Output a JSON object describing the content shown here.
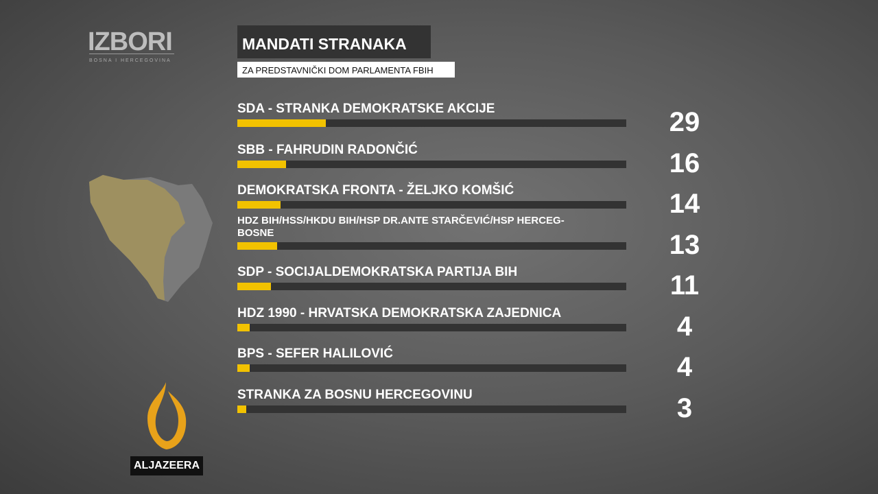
{
  "logo": {
    "title": "IZBORI",
    "subtitle": "BOSNA I HERCEGOVINA"
  },
  "broadcaster": "ALJAZEERA",
  "chart_data": {
    "type": "bar",
    "orientation": "horizontal",
    "title": "MANDATI STRANAKA",
    "subtitle": "ZA PREDSTAVNIČKI DOM PARLAMENTA FBIH",
    "categories": [
      "SDA - STRANKA DEMOKRATSKE AKCIJE",
      "SBB - FAHRUDIN RADONČIĆ",
      "DEMOKRATSKA FRONTA - ŽELJKO KOMŠIĆ",
      "HDZ BIH/HSS/HKDU BIH/HSP DR.ANTE STARČEVIĆ/HSP HERCEG-BOSNE",
      "SDP - SOCIJALDEMOKRATSKA PARTIJA BIH",
      "HDZ 1990 - HRVATSKA DEMOKRATSKA ZAJEDNICA",
      "BPS - SEFER HALILOVIĆ",
      "STRANKA ZA BOSNU HERCEGOVINU"
    ],
    "values": [
      29,
      16,
      14,
      13,
      11,
      4,
      4,
      3
    ],
    "xlim": [
      0,
      127
    ],
    "color": "#f2c200",
    "track_color": "#333333"
  }
}
